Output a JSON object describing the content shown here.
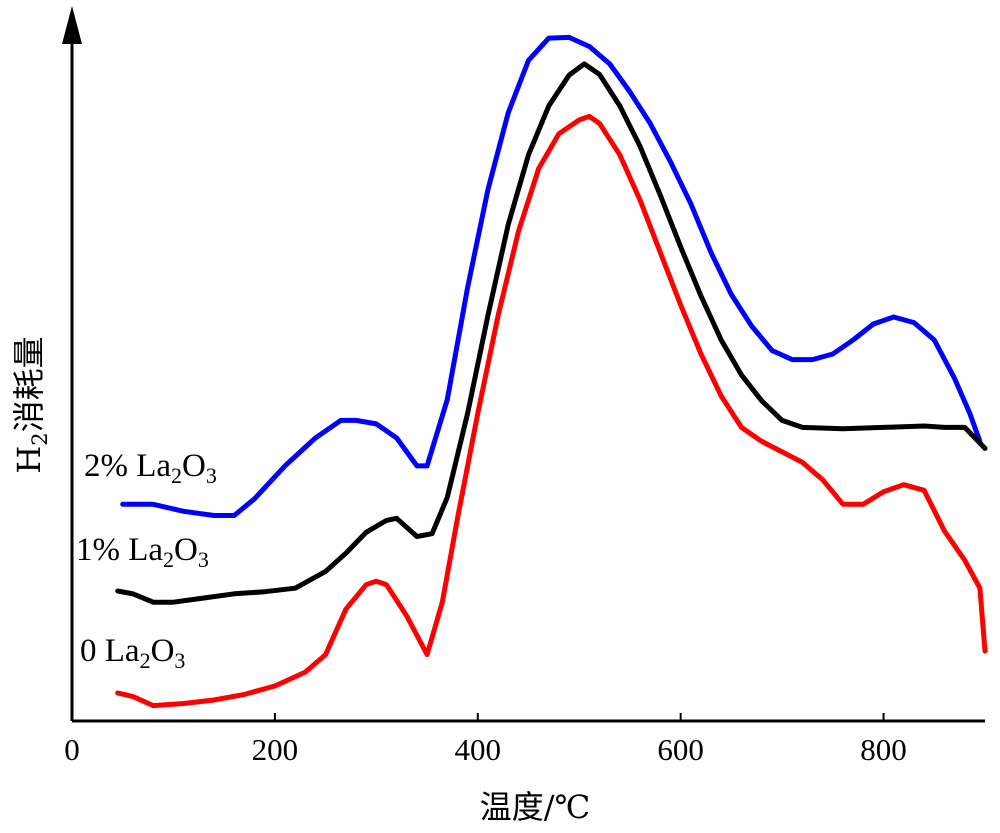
{
  "chart_data": {
    "type": "line",
    "xlabel": "温度/℃",
    "ylabel_main": "H",
    "ylabel_sub": "2",
    "ylabel_rest": "消耗量",
    "xlim": [
      0,
      900
    ],
    "ylim": [
      0,
      1
    ],
    "xticks": [
      "0",
      "200",
      "400",
      "600",
      "800"
    ],
    "xtick_values": [
      0,
      200,
      400,
      600,
      800
    ],
    "grid": false,
    "legend": "inline labels at left of each curve",
    "series": [
      {
        "name": "2% La2O3",
        "label_main": "2% La",
        "label_sub1": "2",
        "label_mid": "O",
        "label_sub2": "3",
        "color": "#0000ff",
        "x": [
          50,
          80,
          110,
          140,
          160,
          180,
          210,
          240,
          265,
          280,
          300,
          320,
          340,
          350,
          370,
          390,
          410,
          430,
          450,
          470,
          490,
          510,
          530,
          550,
          570,
          590,
          610,
          630,
          650,
          670,
          690,
          710,
          730,
          750,
          770,
          790,
          810,
          830,
          850,
          870,
          885,
          895
        ],
        "y": [
          0.31,
          0.31,
          0.3,
          0.294,
          0.294,
          0.318,
          0.365,
          0.405,
          0.43,
          0.43,
          0.425,
          0.405,
          0.365,
          0.365,
          0.46,
          0.62,
          0.76,
          0.87,
          0.945,
          0.977,
          0.978,
          0.965,
          0.94,
          0.9,
          0.855,
          0.8,
          0.74,
          0.67,
          0.61,
          0.565,
          0.53,
          0.517,
          0.517,
          0.525,
          0.545,
          0.568,
          0.578,
          0.57,
          0.545,
          0.49,
          0.44,
          0.4
        ]
      },
      {
        "name": "1% La2O3",
        "label_main": "1% La",
        "label_sub1": "2",
        "label_mid": "O",
        "label_sub2": "3",
        "color": "#000000",
        "x": [
          45,
          60,
          80,
          100,
          130,
          160,
          190,
          220,
          250,
          270,
          290,
          310,
          320,
          340,
          355,
          370,
          390,
          410,
          430,
          450,
          470,
          490,
          505,
          520,
          540,
          560,
          580,
          600,
          620,
          640,
          660,
          680,
          700,
          720,
          760,
          800,
          840,
          860,
          880,
          890,
          900
        ],
        "y": [
          0.186,
          0.182,
          0.17,
          0.17,
          0.176,
          0.182,
          0.185,
          0.19,
          0.214,
          0.24,
          0.27,
          0.287,
          0.29,
          0.264,
          0.268,
          0.32,
          0.44,
          0.58,
          0.71,
          0.81,
          0.88,
          0.924,
          0.94,
          0.925,
          0.88,
          0.822,
          0.752,
          0.678,
          0.608,
          0.545,
          0.495,
          0.458,
          0.43,
          0.42,
          0.418,
          0.42,
          0.422,
          0.42,
          0.42,
          0.405,
          0.39
        ]
      },
      {
        "name": "0 La2O3",
        "label_main": "0 La",
        "label_sub1": "2",
        "label_mid": "O",
        "label_sub2": "3",
        "color": "#ff0000",
        "x": [
          45,
          60,
          80,
          110,
          140,
          170,
          200,
          230,
          250,
          270,
          290,
          300,
          310,
          330,
          350,
          365,
          380,
          400,
          420,
          440,
          460,
          480,
          500,
          510,
          520,
          540,
          560,
          580,
          600,
          620,
          640,
          660,
          680,
          700,
          720,
          740,
          760,
          780,
          800,
          820,
          840,
          860,
          880,
          895,
          900
        ],
        "y": [
          0.04,
          0.035,
          0.022,
          0.025,
          0.03,
          0.038,
          0.05,
          0.07,
          0.095,
          0.16,
          0.195,
          0.2,
          0.195,
          0.15,
          0.095,
          0.17,
          0.29,
          0.44,
          0.58,
          0.7,
          0.79,
          0.84,
          0.86,
          0.865,
          0.855,
          0.81,
          0.745,
          0.67,
          0.595,
          0.525,
          0.465,
          0.42,
          0.4,
          0.385,
          0.37,
          0.345,
          0.31,
          0.31,
          0.328,
          0.338,
          0.33,
          0.272,
          0.23,
          0.19,
          0.1
        ]
      }
    ]
  }
}
